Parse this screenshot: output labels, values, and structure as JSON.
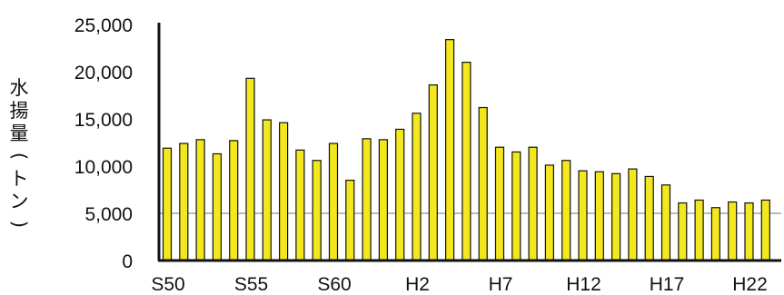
{
  "chart_data": {
    "type": "bar",
    "ylabel": "水揚量(トン)",
    "ylim": [
      0,
      25000
    ],
    "yticks": [
      {
        "value": 0,
        "label": "0"
      },
      {
        "value": 5000,
        "label": "5,000"
      },
      {
        "value": 10000,
        "label": "10,000"
      },
      {
        "value": 15000,
        "label": "15,000"
      },
      {
        "value": 20000,
        "label": "20,000"
      },
      {
        "value": 25000,
        "label": "25,000"
      }
    ],
    "xtick_labels": [
      {
        "index": 0,
        "label": "S50"
      },
      {
        "index": 5,
        "label": "S55"
      },
      {
        "index": 10,
        "label": "S60"
      },
      {
        "index": 15,
        "label": "H2"
      },
      {
        "index": 20,
        "label": "H7"
      },
      {
        "index": 25,
        "label": "H12"
      },
      {
        "index": 30,
        "label": "H17"
      },
      {
        "index": 35,
        "label": "H22"
      }
    ],
    "values": [
      11900,
      12400,
      12800,
      11300,
      12700,
      19300,
      14900,
      14600,
      11700,
      10600,
      12400,
      8500,
      12900,
      12800,
      13900,
      15600,
      18600,
      23400,
      21000,
      16200,
      12000,
      11500,
      12000,
      10100,
      10600,
      9500,
      9400,
      9200,
      9700,
      8900,
      8000,
      6100,
      6400,
      5600,
      6200,
      6100,
      6400
    ],
    "grid": false,
    "colors": {
      "bar_fill": "#f3e81e",
      "bar_stroke": "#111111",
      "axis": "#111111",
      "reference_line": "#777777"
    }
  }
}
